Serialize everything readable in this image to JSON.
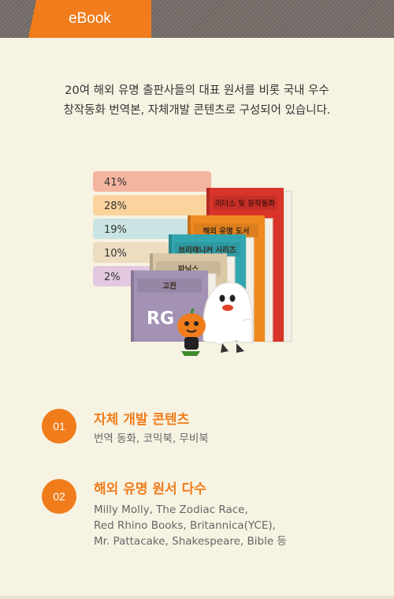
{
  "header": {
    "tab_label": "eBook"
  },
  "intro": {
    "line1": "20여 해외 유명 출판사들의 대표 원서를 비롯 국내 우수",
    "line2": "창작동화 번역본, 자체개발 콘텐츠로 구성되어 있습니다."
  },
  "chart_data": {
    "type": "bar",
    "categories": [
      "리더스 및 창작동화",
      "해외 유명 도서",
      "브리태니커 시리즈",
      "파닉스",
      "고전"
    ],
    "values": [
      41,
      28,
      19,
      10,
      2
    ],
    "value_labels": [
      "41%",
      "28%",
      "19%",
      "10%",
      "2%"
    ],
    "colors": [
      "#f4b5a0",
      "#fbd39c",
      "#c9e4e3",
      "#ecdcc0",
      "#e2c9df"
    ],
    "book_colors": [
      "#d8342a",
      "#f08a20",
      "#32a6b0",
      "#d9c7a5",
      "#a392b4"
    ],
    "cover_logo": "RG",
    "title": "",
    "xlabel": "",
    "ylabel": ""
  },
  "features": [
    {
      "number": "01",
      "title": "자체 개발 콘텐츠",
      "desc": [
        "번역 동화, 코믹북, 무비북"
      ]
    },
    {
      "number": "02",
      "title": "해외 유명 원서 다수",
      "desc": [
        "Milly Molly, The Zodiac Race,",
        "Red Rhino Books, Britannica(YCE),",
        "Mr. Pattacake, Shakespeare, Bible 등"
      ]
    }
  ]
}
